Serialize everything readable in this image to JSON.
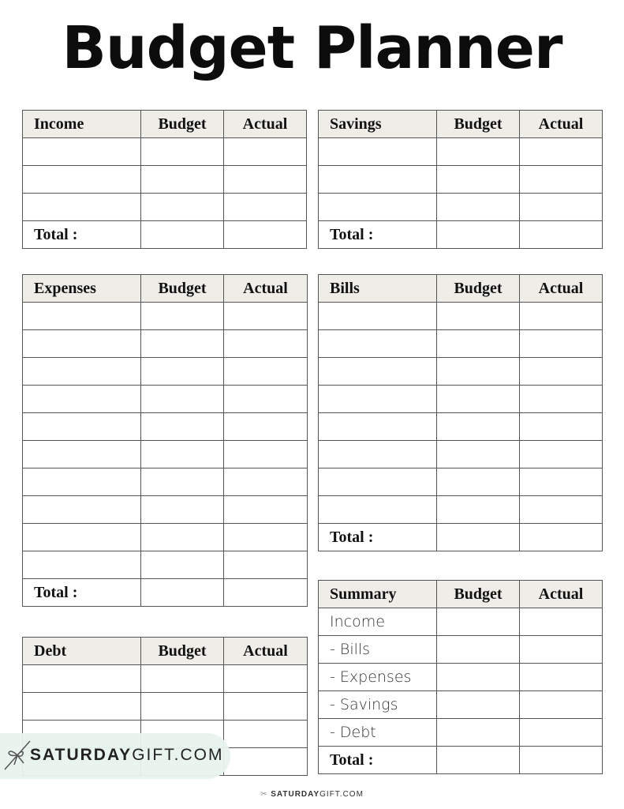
{
  "title": "Budget Planner",
  "tables": [
    {
      "id": "income",
      "title": "Income",
      "budget": "Budget",
      "actual": "Actual",
      "rows": [
        "",
        "",
        "",
        ""
      ],
      "total_row": "Total :"
    },
    {
      "id": "savings",
      "title": "Savings",
      "budget": "Budget",
      "actual": "Actual",
      "rows": [
        "",
        "",
        "",
        ""
      ],
      "total_row": "Total :"
    },
    {
      "id": "expenses",
      "title": "Expenses",
      "budget": "Budget",
      "actual": "Actual",
      "rows": [
        "",
        "",
        "",
        "",
        "",
        "",
        "",
        "",
        "",
        "",
        ""
      ],
      "total_row": "Total :"
    },
    {
      "id": "bills",
      "title": "Bills",
      "budget": "Budget",
      "actual": "Actual",
      "rows": [
        "",
        "",
        "",
        "",
        "",
        "",
        "",
        "",
        ""
      ],
      "total_row": "Total :"
    },
    {
      "id": "debt",
      "title": "Debt",
      "budget": "Budget",
      "actual": "Actual",
      "rows": [
        "",
        "",
        "",
        ""
      ],
      "total_row": ""
    },
    {
      "id": "summary",
      "title": "Summary",
      "budget": "Budget",
      "actual": "Actual",
      "rows": [
        "Income",
        " - Bills",
        " - Expenses",
        " - Savings",
        " - Debt",
        ""
      ],
      "total_row": "Total :"
    }
  ],
  "watermark": {
    "bold": "SATURDAY",
    "light": "GIFT.COM",
    "icon": "gift-bow-icon",
    "color": "#e8f3ee"
  },
  "footer": {
    "bold": "SATURDAY",
    "light": "GIFT.COM",
    "icon": "gift-bow-icon"
  }
}
